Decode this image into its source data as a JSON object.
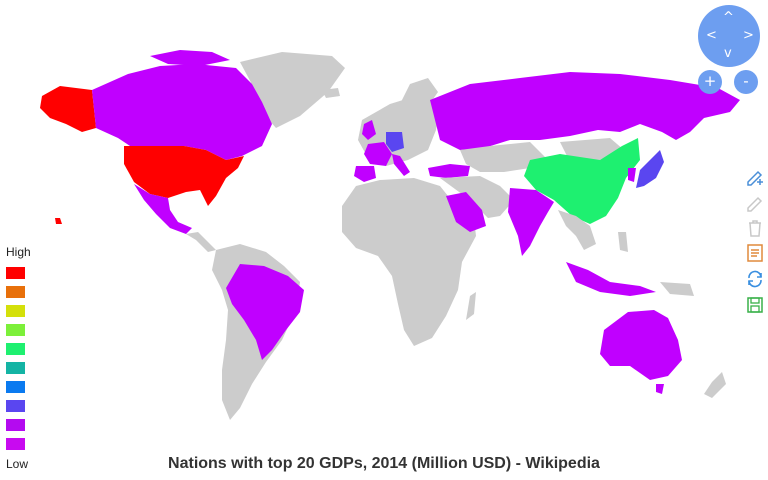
{
  "title": "Nations with top 20 GDPs, 2014 (Million USD) - Wikipedia",
  "legend": {
    "high_label": "High",
    "low_label": "Low",
    "colors": [
      "#ff0000",
      "#e8700a",
      "#d4e00a",
      "#7cf03a",
      "#1ef070",
      "#14b4a4",
      "#0a7af0",
      "#5a46f0",
      "#b40af0",
      "#c80af0"
    ]
  },
  "colors": {
    "land": "#cccccc",
    "rank_1": "#ff0000",
    "rank_2": "#1ef070",
    "rank_3": "#5a46f0",
    "other_top20": "#c000ff"
  },
  "regions": [
    {
      "name": "United States",
      "color_key": "rank_1"
    },
    {
      "name": "China",
      "color_key": "rank_2"
    },
    {
      "name": "Japan",
      "color_key": "rank_3"
    },
    {
      "name": "Germany",
      "color_key": "rank_3"
    },
    {
      "name": "Canada",
      "color_key": "other_top20"
    },
    {
      "name": "Mexico",
      "color_key": "other_top20"
    },
    {
      "name": "Brazil",
      "color_key": "other_top20"
    },
    {
      "name": "Russia",
      "color_key": "other_top20"
    },
    {
      "name": "India",
      "color_key": "other_top20"
    },
    {
      "name": "Australia",
      "color_key": "other_top20"
    },
    {
      "name": "Indonesia",
      "color_key": "other_top20"
    },
    {
      "name": "Saudi Arabia",
      "color_key": "other_top20"
    },
    {
      "name": "Turkey",
      "color_key": "other_top20"
    },
    {
      "name": "United Kingdom",
      "color_key": "other_top20"
    },
    {
      "name": "France",
      "color_key": "other_top20"
    },
    {
      "name": "Italy",
      "color_key": "other_top20"
    },
    {
      "name": "Spain",
      "color_key": "other_top20"
    },
    {
      "name": "South Korea",
      "color_key": "other_top20"
    }
  ],
  "nav": {
    "up": "^",
    "down": "v",
    "left": "<",
    "right": ">",
    "zoom_in": "+",
    "zoom_out": "-"
  },
  "tools": [
    {
      "icon": "pencil-plus-icon",
      "color": "#4a8fd8"
    },
    {
      "icon": "pencil-icon",
      "color": "#c8c8c8"
    },
    {
      "icon": "trash-icon",
      "color": "#c8c8c8"
    },
    {
      "icon": "document-icon",
      "color": "#e08a3c"
    },
    {
      "icon": "refresh-icon",
      "color": "#3a8fe0"
    },
    {
      "icon": "save-icon",
      "color": "#38b048"
    }
  ]
}
